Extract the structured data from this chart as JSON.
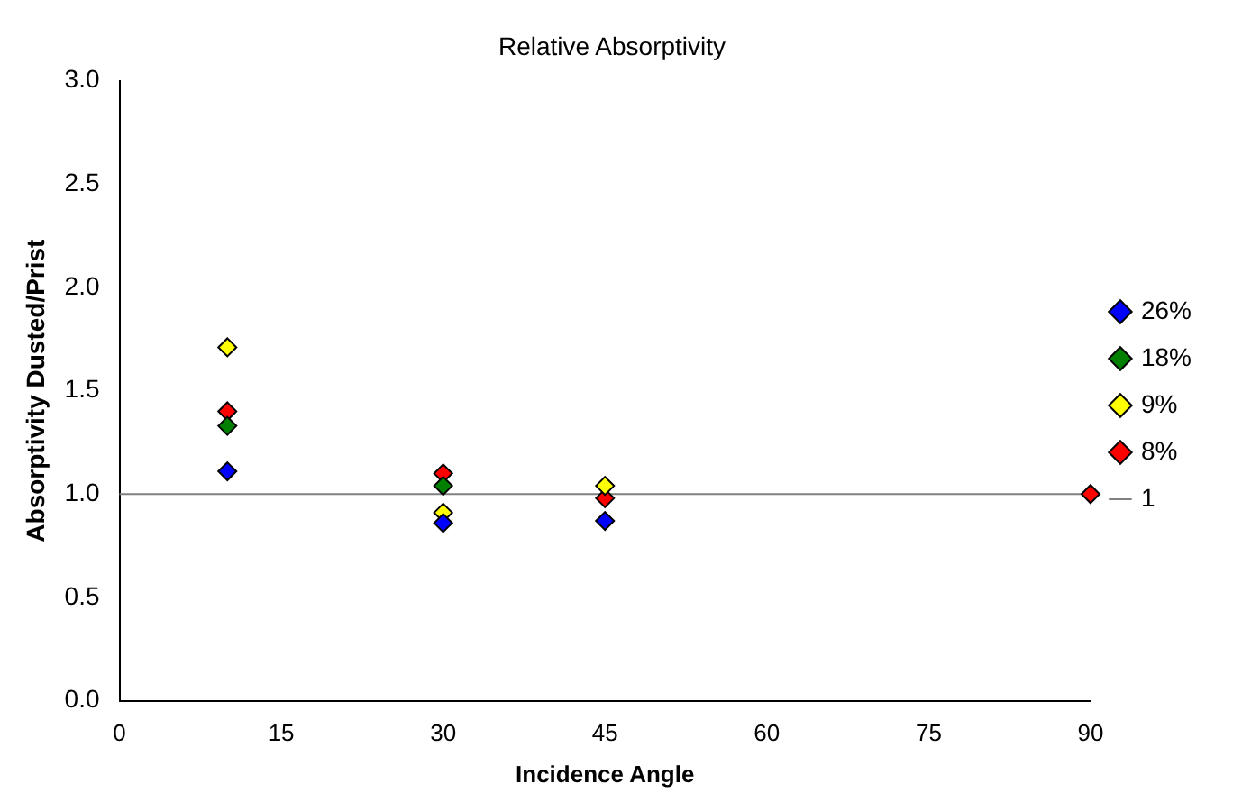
{
  "chart_data": {
    "type": "scatter",
    "title": "Relative Absorptivity",
    "xlabel": "Incidence Angle",
    "ylabel": "Absorptivity Dusted/Prist",
    "xlim": [
      0,
      90
    ],
    "xticks": [
      0,
      15,
      30,
      45,
      60,
      75,
      90
    ],
    "ylim": [
      0,
      3
    ],
    "yticks": [
      {
        "value": 0,
        "label": "0.0"
      },
      {
        "value": 0.5,
        "label": "0.5"
      },
      {
        "value": 1,
        "label": "1.0"
      },
      {
        "value": 1.5,
        "label": "1.5"
      },
      {
        "value": 2,
        "label": "2.0"
      },
      {
        "value": 2.5,
        "label": "2.5"
      },
      {
        "value": 3,
        "label": "3.0"
      }
    ],
    "grid": false,
    "legend": "right",
    "marker": "diamond",
    "series": [
      {
        "name": "26%",
        "color": "#0000ff",
        "x": [
          10,
          30,
          45
        ],
        "values": [
          1.11,
          0.86,
          0.87
        ]
      },
      {
        "name": "18%",
        "color": "#007f00",
        "x": [
          10,
          30
        ],
        "values": [
          1.33,
          1.04
        ]
      },
      {
        "name": "9%",
        "color": "#ffff00",
        "x": [
          10,
          30,
          45
        ],
        "values": [
          1.71,
          0.91,
          1.04
        ]
      },
      {
        "name": "8%",
        "color": "#ff0000",
        "x": [
          10,
          30,
          45,
          90
        ],
        "values": [
          1.4,
          1.1,
          0.98,
          1.0
        ]
      },
      {
        "name": "1",
        "type": "line",
        "color": "#808080",
        "marker": "none",
        "x": [
          0,
          90
        ],
        "values": [
          1,
          1
        ]
      }
    ]
  }
}
